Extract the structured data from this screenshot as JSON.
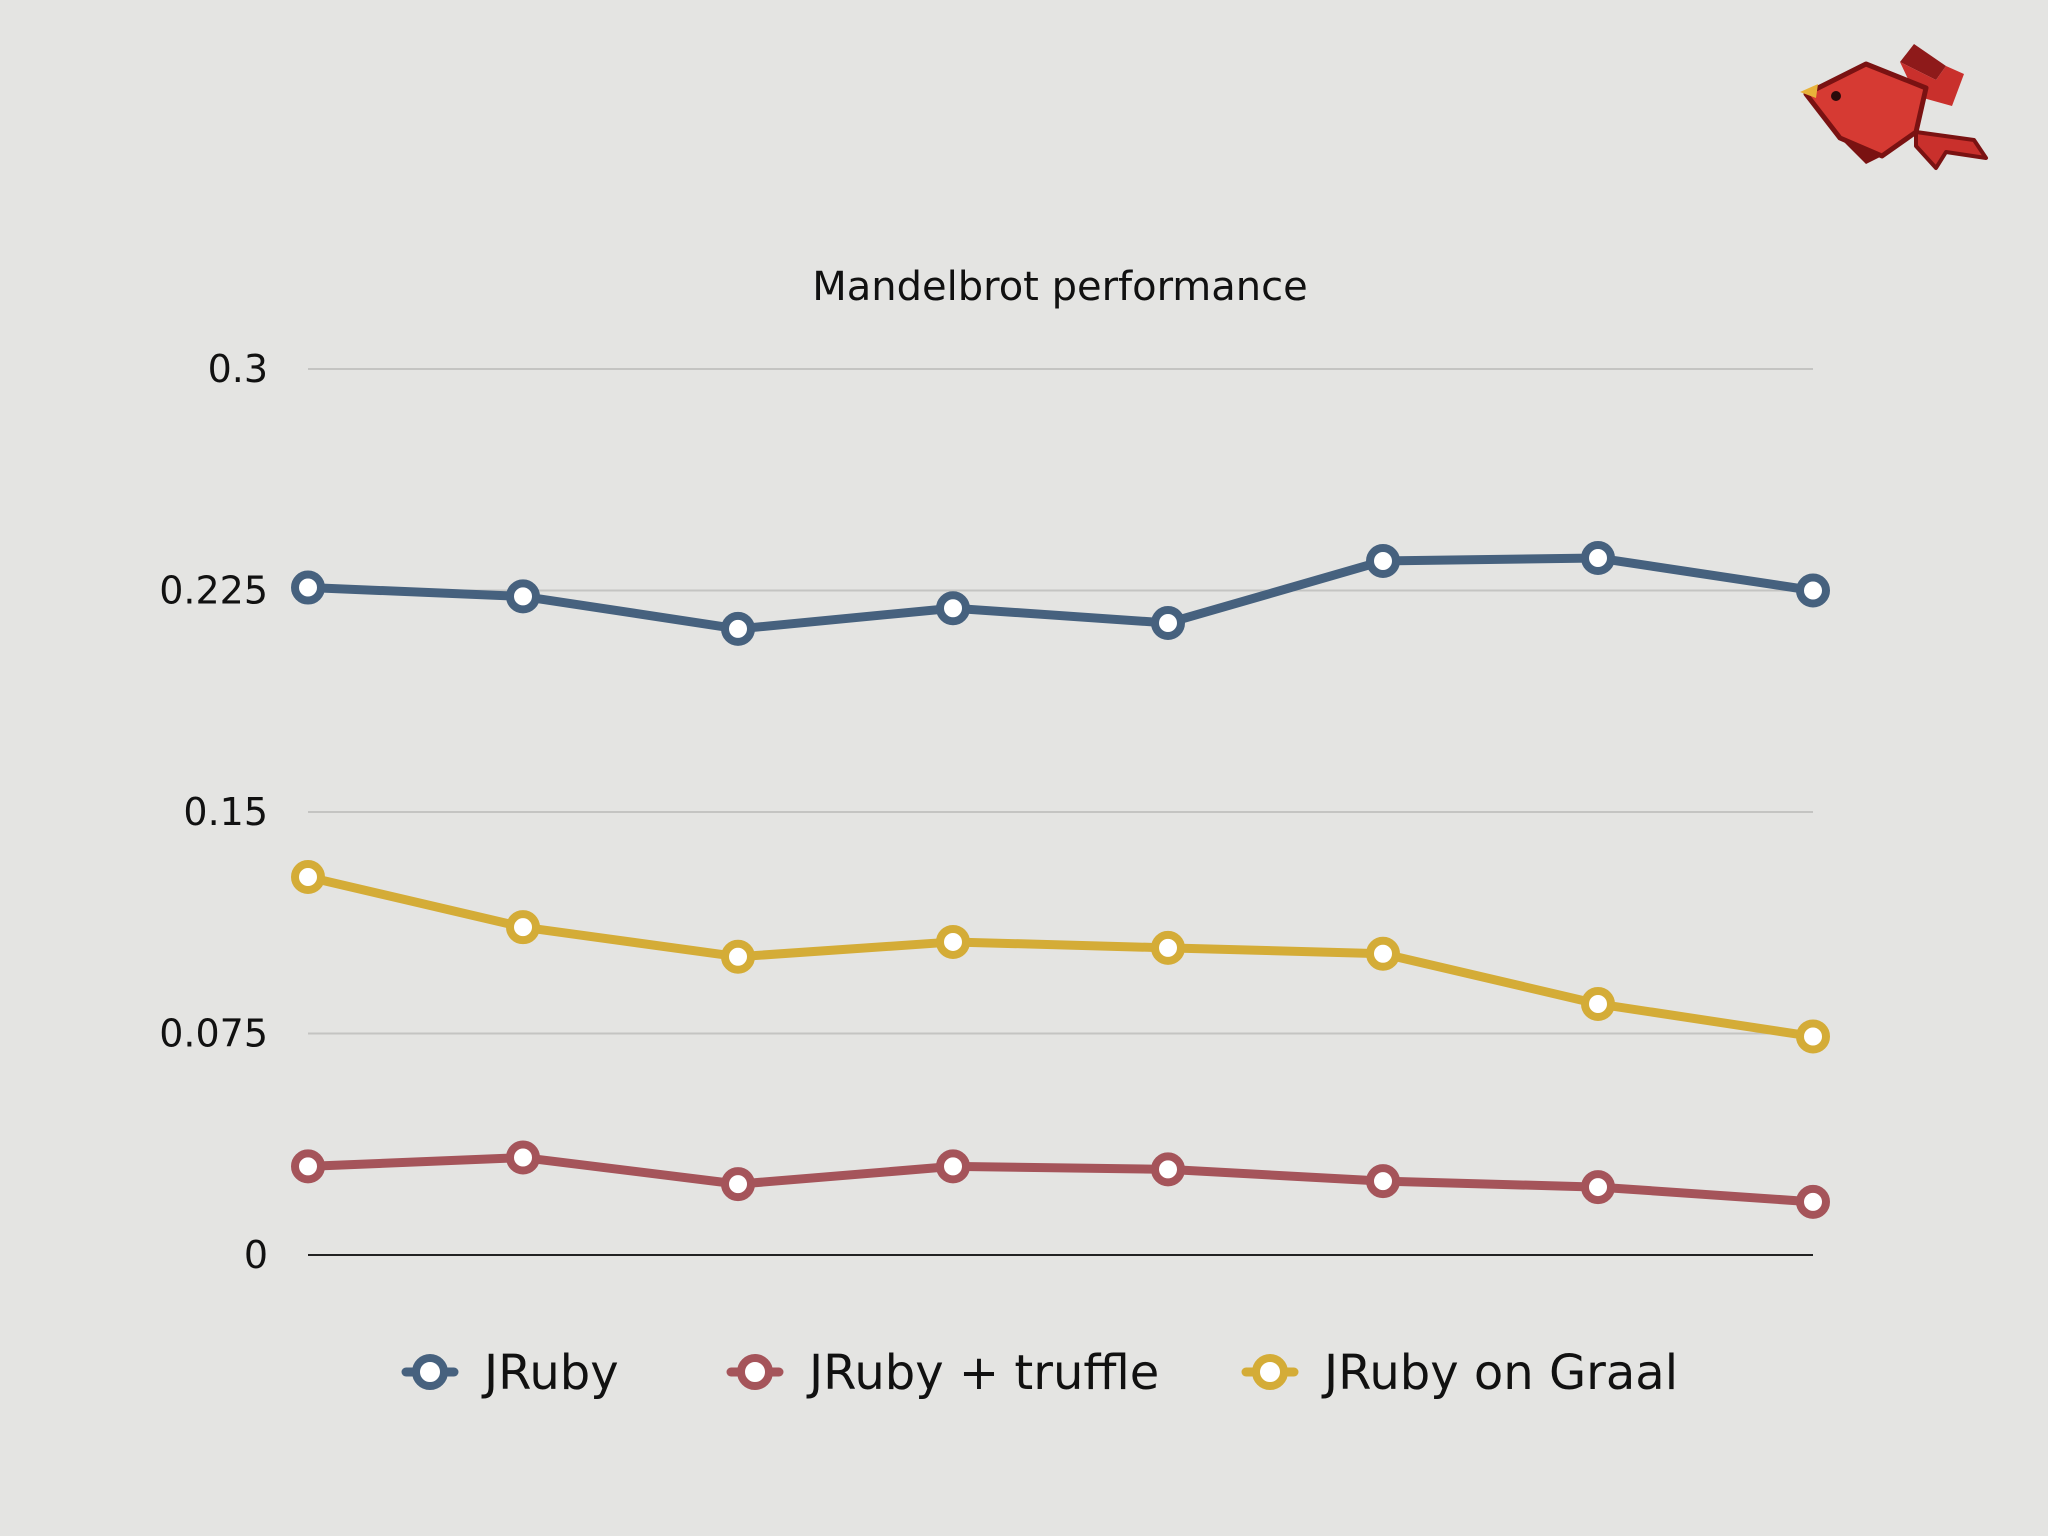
{
  "slide": {
    "logo_icon": "red-bird-logo-icon",
    "background": "#e4e4e2"
  },
  "chart_data": {
    "type": "line",
    "title": "Mandelbrot performance",
    "xlabel": "",
    "ylabel": "",
    "ylim": [
      0,
      0.3
    ],
    "yticks": [
      0,
      0.075,
      0.15,
      0.225,
      0.3
    ],
    "ytick_labels": [
      "0",
      "0.075",
      "0.15",
      "0.225",
      "0.3"
    ],
    "grid": true,
    "legend_position": "bottom",
    "x": [
      1,
      2,
      3,
      4,
      5,
      6,
      7,
      8
    ],
    "series": [
      {
        "name": "JRuby",
        "color": "#46617e",
        "values": [
          0.226,
          0.223,
          0.212,
          0.219,
          0.214,
          0.235,
          0.236,
          0.225
        ]
      },
      {
        "name": "JRuby + truffle",
        "color": "#a5545a",
        "values": [
          0.03,
          0.033,
          0.024,
          0.03,
          0.029,
          0.025,
          0.023,
          0.018
        ]
      },
      {
        "name": "JRuby on Graal",
        "color": "#d4ac37",
        "values": [
          0.128,
          0.111,
          0.101,
          0.106,
          0.104,
          0.102,
          0.085,
          0.074
        ]
      }
    ]
  }
}
